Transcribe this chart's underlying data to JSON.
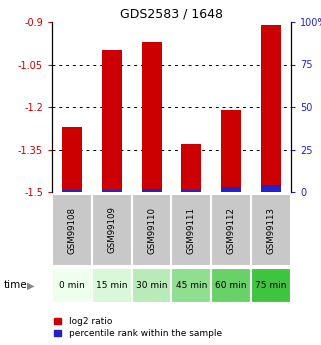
{
  "title": "GDS2583 / 1648",
  "samples": [
    "GSM99108",
    "GSM99109",
    "GSM99110",
    "GSM99111",
    "GSM99112",
    "GSM99113"
  ],
  "time_labels": [
    "0 min",
    "15 min",
    "30 min",
    "45 min",
    "60 min",
    "75 min"
  ],
  "log2_values": [
    -1.27,
    -1.0,
    -0.97,
    -1.33,
    -1.21,
    -0.91
  ],
  "percentile_values": [
    1,
    1,
    2,
    1,
    3,
    4
  ],
  "ylim_left": [
    -1.5,
    -0.9
  ],
  "ylim_right": [
    0,
    100
  ],
  "yticks_left": [
    -1.5,
    -1.35,
    -1.2,
    -1.05,
    -0.9
  ],
  "yticks_right": [
    0,
    25,
    50,
    75,
    100
  ],
  "bar_color_red": "#cc0000",
  "bar_color_blue": "#2222cc",
  "title_color": "#000000",
  "left_tick_color": "#cc0000",
  "right_tick_color": "#2222cc",
  "time_bg_colors": [
    "#eeffee",
    "#d8f8d8",
    "#b8ebb8",
    "#90de90",
    "#68d168",
    "#3ec43e"
  ],
  "sample_bg_color": "#c8c8c8",
  "bar_width": 0.5,
  "grid_dotted_ticks": [
    -1.05,
    -1.2,
    -1.35
  ],
  "legend_items": [
    "log2 ratio",
    "percentile rank within the sample"
  ]
}
